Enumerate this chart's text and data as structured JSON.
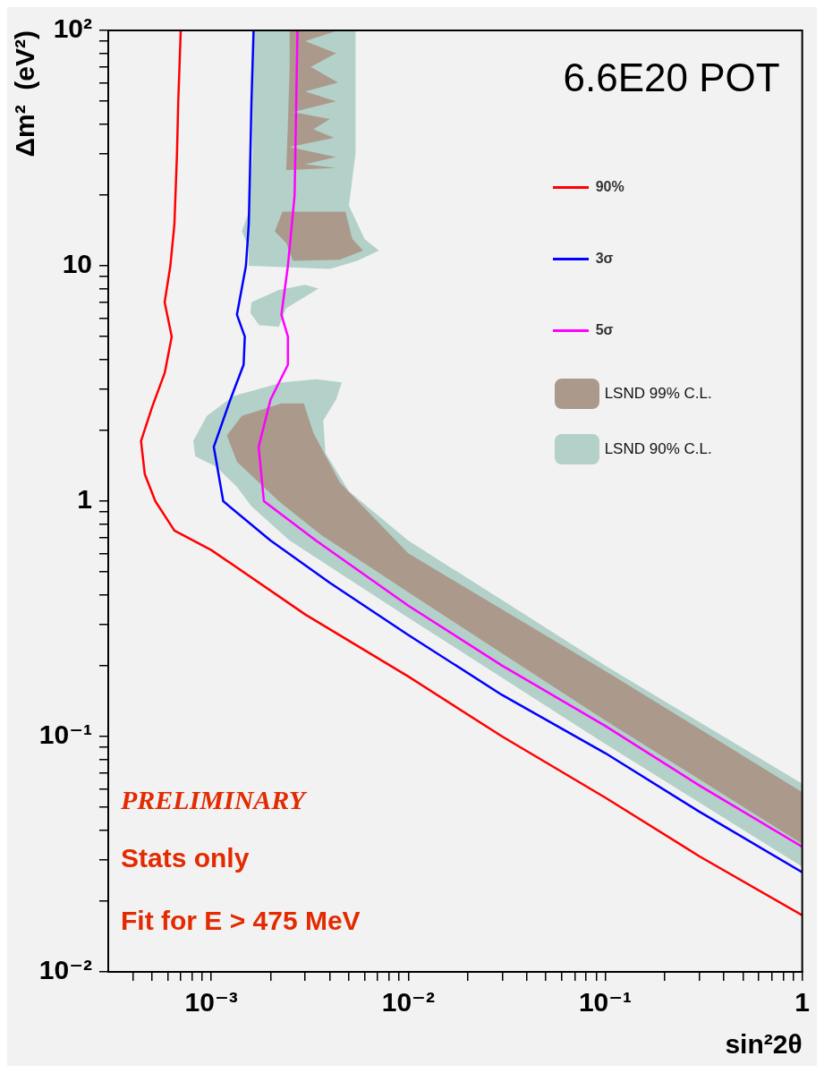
{
  "chart_data": {
    "type": "line",
    "xlabel": "sin²2θ",
    "ylabel": "Δm²  (eV²)",
    "log": "xy",
    "legend": "top right",
    "xlim": [
      0.0003,
      1
    ],
    "ylim": [
      0.01,
      100
    ],
    "xticks": [
      {
        "value": 0.0004,
        "label": null
      },
      {
        "value": 0.0005,
        "label": null
      },
      {
        "value": 0.0006,
        "label": null
      },
      {
        "value": 0.0007,
        "label": null
      },
      {
        "value": 0.0008,
        "label": null
      },
      {
        "value": 0.0009,
        "label": null
      },
      {
        "value": 0.001,
        "label": "10⁻³"
      },
      {
        "value": 0.002,
        "label": null
      },
      {
        "value": 0.003,
        "label": null
      },
      {
        "value": 0.004,
        "label": null
      },
      {
        "value": 0.005,
        "label": null
      },
      {
        "value": 0.006,
        "label": null
      },
      {
        "value": 0.007,
        "label": null
      },
      {
        "value": 0.008,
        "label": null
      },
      {
        "value": 0.009,
        "label": null
      },
      {
        "value": 0.01,
        "label": "10⁻²"
      },
      {
        "value": 0.02,
        "label": null
      },
      {
        "value": 0.03,
        "label": null
      },
      {
        "value": 0.04,
        "label": null
      },
      {
        "value": 0.05,
        "label": null
      },
      {
        "value": 0.06,
        "label": null
      },
      {
        "value": 0.07,
        "label": null
      },
      {
        "value": 0.08,
        "label": null
      },
      {
        "value": 0.09,
        "label": null
      },
      {
        "value": 0.1,
        "label": "10⁻¹"
      },
      {
        "value": 0.2,
        "label": null
      },
      {
        "value": 0.3,
        "label": null
      },
      {
        "value": 0.4,
        "label": null
      },
      {
        "value": 0.5,
        "label": null
      },
      {
        "value": 0.6,
        "label": null
      },
      {
        "value": 0.7,
        "label": null
      },
      {
        "value": 0.8,
        "label": null
      },
      {
        "value": 0.9,
        "label": null
      },
      1
    ],
    "yticks": [
      {
        "value": 0.01,
        "label": "10⁻²"
      },
      {
        "value": 0.02,
        "label": null
      },
      {
        "value": 0.03,
        "label": null
      },
      {
        "value": 0.04,
        "label": null
      },
      {
        "value": 0.05,
        "label": null
      },
      {
        "value": 0.06,
        "label": null
      },
      {
        "value": 0.07,
        "label": null
      },
      {
        "value": 0.08,
        "label": null
      },
      {
        "value": 0.09,
        "label": null
      },
      {
        "value": 0.1,
        "label": "10⁻¹"
      },
      {
        "value": 0.2,
        "label": null
      },
      {
        "value": 0.3,
        "label": null
      },
      {
        "value": 0.4,
        "label": null
      },
      {
        "value": 0.5,
        "label": null
      },
      {
        "value": 0.6,
        "label": null
      },
      {
        "value": 0.7,
        "label": null
      },
      {
        "value": 0.8,
        "label": null
      },
      {
        "value": 0.9,
        "label": null
      },
      1,
      {
        "value": 2,
        "label": null
      },
      {
        "value": 3,
        "label": null
      },
      {
        "value": 4,
        "label": null
      },
      {
        "value": 5,
        "label": null
      },
      {
        "value": 6,
        "label": null
      },
      {
        "value": 7,
        "label": null
      },
      {
        "value": 8,
        "label": null
      },
      {
        "value": 9,
        "label": null
      },
      10,
      {
        "value": 20,
        "label": null
      },
      {
        "value": 30,
        "label": null
      },
      {
        "value": 40,
        "label": null
      },
      {
        "value": 50,
        "label": null
      },
      {
        "value": 60,
        "label": null
      },
      {
        "value": 70,
        "label": null
      },
      {
        "value": 80,
        "label": null
      },
      {
        "value": 90,
        "label": null
      },
      {
        "value": 100,
        "label": "10²"
      }
    ],
    "series": [
      {
        "name": "90%",
        "color": "#ff0000",
        "x": [
          0.0007,
          0.00068,
          0.00067,
          0.00065,
          0.00062,
          0.00058,
          0.00063,
          0.00058,
          0.0005,
          0.00044,
          0.00046,
          0.00052,
          0.00065,
          0.001,
          0.003,
          0.01,
          0.03,
          0.1,
          0.3,
          1
        ],
        "values": [
          100,
          50,
          30,
          15,
          10,
          7,
          5,
          3.5,
          2.5,
          1.8,
          1.3,
          1,
          0.75,
          0.62,
          0.33,
          0.18,
          0.1,
          0.055,
          0.031,
          0.0174
        ]
      },
      {
        "name": "3σ",
        "color": "#0000ff",
        "x": [
          0.00164,
          0.0016,
          0.00158,
          0.00155,
          0.0015,
          0.00135,
          0.00148,
          0.00146,
          0.00125,
          0.00103,
          0.00115,
          0.002,
          0.004,
          0.01,
          0.03,
          0.1,
          0.3,
          1
        ],
        "values": [
          100,
          50,
          30,
          15,
          10,
          6.2,
          5,
          3.8,
          2.7,
          1.7,
          1,
          0.68,
          0.45,
          0.27,
          0.15,
          0.085,
          0.048,
          0.0265
        ]
      },
      {
        "name": "5σ",
        "color": "#ff00ff",
        "x": [
          0.00274,
          0.0027,
          0.00265,
          0.00245,
          0.00227,
          0.00245,
          0.00245,
          0.002,
          0.00174,
          0.00185,
          0.0034,
          0.01,
          0.03,
          0.1,
          0.3,
          1
        ],
        "values": [
          100,
          50,
          20,
          10,
          6.2,
          5,
          3.8,
          2.7,
          1.7,
          1,
          0.68,
          0.36,
          0.2,
          0.111,
          0.062,
          0.034
        ]
      },
      {
        "name": "LSND 99% C.L.",
        "type": "area",
        "color": "#ab9a8c",
        "x": [
          0.0012,
          0.00143,
          0.00227,
          0.00295,
          0.0033,
          0.0045,
          0.01,
          0.1,
          1,
          1,
          0.1,
          0.01,
          0.0036,
          0.0022,
          0.00135
        ],
        "values": [
          1.9,
          2.3,
          2.6,
          2.6,
          1.95,
          1.2,
          0.6,
          0.19,
          0.058,
          0.035,
          0.117,
          0.41,
          0.72,
          1,
          1.47
        ]
      },
      {
        "type": "area",
        "color": "#ab9a8c",
        "x": [
          0.0023,
          0.0048,
          0.0052,
          0.0059,
          0.0045,
          0.0026,
          0.0024,
          0.0021
        ],
        "values": [
          17,
          17,
          13,
          11.6,
          10.6,
          10.5,
          12.5,
          14
        ]
      },
      {
        "type": "area",
        "color": "#ab9a8c",
        "x": [
          0.0025,
          0.0044,
          0.003,
          0.0043,
          0.0032,
          0.0044,
          0.003,
          0.0043,
          0.0026,
          0.004,
          0.0033,
          0.0042,
          0.0025,
          0.0043,
          0.003,
          0.0043,
          0.0024,
          0.00245,
          0.0025
        ],
        "values": [
          100,
          100,
          90,
          80,
          70,
          60,
          55,
          50,
          45,
          42,
          38,
          35,
          32,
          29,
          27,
          26,
          25.5,
          40,
          70
        ]
      },
      {
        "name": "LSND 90% C.L.",
        "type": "area",
        "color": "#b3d1c9",
        "x": [
          0.00081,
          0.00095,
          0.0013,
          0.0023,
          0.0034,
          0.0046,
          0.0043,
          0.0037,
          0.0038,
          0.005,
          0.01,
          0.1,
          1,
          1,
          0.1,
          0.01,
          0.0025,
          0.0016,
          0.00135,
          0.00106,
          0.00083
        ],
        "values": [
          1.8,
          2.3,
          2.8,
          3.2,
          3.3,
          3.2,
          2.7,
          2.2,
          1.6,
          1.1,
          0.68,
          0.2,
          0.063,
          0.028,
          0.093,
          0.32,
          0.68,
          0.95,
          1.15,
          1.4,
          1.55
        ]
      },
      {
        "type": "area",
        "color": "#b3d1c9",
        "x": [
          0.00162,
          0.0054,
          0.0054,
          0.005,
          0.006,
          0.0071,
          0.0055,
          0.004,
          0.00155,
          0.00155,
          0.00143,
          0.00155,
          0.00162
        ],
        "values": [
          100,
          100,
          30,
          18,
          13,
          11.6,
          10.5,
          9.7,
          10,
          12,
          14,
          17,
          30
        ]
      },
      {
        "type": "area",
        "color": "#b3d1c9",
        "x": [
          0.0016,
          0.0022,
          0.003,
          0.0035,
          0.0024,
          0.0022,
          0.00175,
          0.00158
        ],
        "values": [
          7,
          7.9,
          8.3,
          8,
          6.6,
          5.5,
          5.6,
          6.3
        ]
      }
    ],
    "annotations": [
      "6.6E20 POT",
      "PRELIMINARY",
      "Stats only",
      "Fit for E > 475 MeV"
    ]
  }
}
